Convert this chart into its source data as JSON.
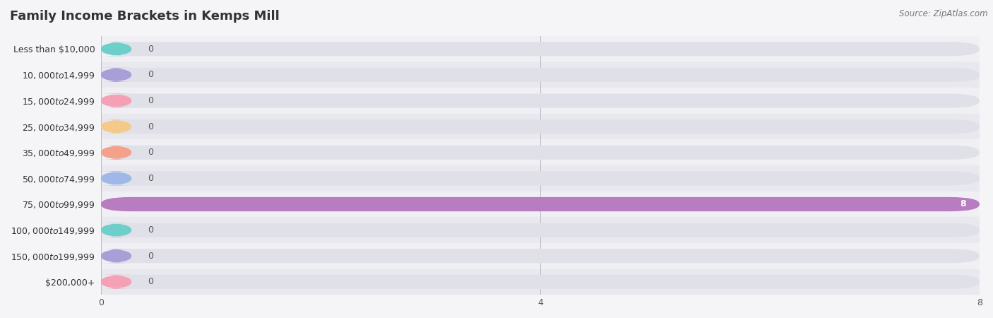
{
  "title": "Family Income Brackets in Kemps Mill",
  "source": "Source: ZipAtlas.com",
  "categories": [
    "Less than $10,000",
    "$10,000 to $14,999",
    "$15,000 to $24,999",
    "$25,000 to $34,999",
    "$35,000 to $49,999",
    "$50,000 to $74,999",
    "$75,000 to $99,999",
    "$100,000 to $149,999",
    "$150,000 to $199,999",
    "$200,000+"
  ],
  "values": [
    0,
    0,
    0,
    0,
    0,
    0,
    8,
    0,
    0,
    0
  ],
  "bar_colors": [
    "#6ececa",
    "#a89fd8",
    "#f4a0b5",
    "#f5c98a",
    "#f4a08a",
    "#a0b8e8",
    "#b87cc0",
    "#6ececa",
    "#a89fd8",
    "#f4a0b5"
  ],
  "row_colors": [
    "#f0f0f4",
    "#e8e8ee"
  ],
  "bar_bg_color": "#e0e0e8",
  "xlim": [
    0,
    8
  ],
  "xticks": [
    0,
    4,
    8
  ],
  "background_color": "#f5f5f8",
  "title_fontsize": 13,
  "label_fontsize": 9,
  "value_fontsize": 9,
  "source_fontsize": 8.5,
  "bar_height": 0.55
}
